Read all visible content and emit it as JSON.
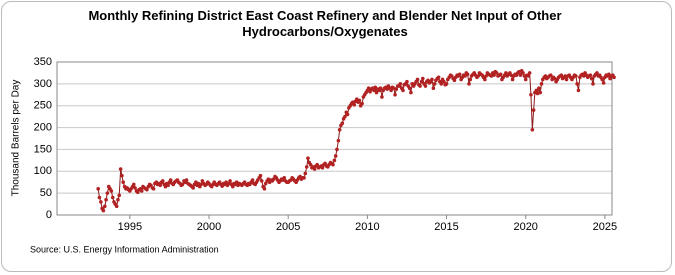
{
  "chart_data": {
    "type": "line",
    "title": "Monthly Refining District East Coast Refinery and Blender Net Input of Other Hydrocarbons/Oxygenates",
    "y_label": "Thousand Barrels per Day",
    "source": "Source: U.S. Energy Information Administration",
    "color": "#b22222",
    "xlim": [
      1990.4,
      2025.45
    ],
    "xticks": [
      1995,
      2000,
      2005,
      2010,
      2015,
      2020,
      2025
    ],
    "ylim": [
      0,
      350
    ],
    "yticks": [
      0,
      50,
      100,
      150,
      200,
      250,
      300,
      350
    ],
    "grid": true,
    "x": [
      1993,
      1993.08,
      1993.17,
      1993.25,
      1993.33,
      1993.42,
      1993.5,
      1993.58,
      1993.67,
      1993.75,
      1993.83,
      1993.92,
      1994,
      1994.08,
      1994.17,
      1994.25,
      1994.33,
      1994.42,
      1994.5,
      1994.58,
      1994.67,
      1994.75,
      1994.83,
      1994.92,
      1995,
      1995.08,
      1995.17,
      1995.25,
      1995.33,
      1995.42,
      1995.5,
      1995.58,
      1995.67,
      1995.75,
      1995.83,
      1995.92,
      1996,
      1996.08,
      1996.17,
      1996.25,
      1996.33,
      1996.42,
      1996.5,
      1996.58,
      1996.67,
      1996.75,
      1996.83,
      1996.92,
      1997,
      1997.08,
      1997.17,
      1997.25,
      1997.33,
      1997.42,
      1997.5,
      1997.58,
      1997.67,
      1997.75,
      1997.83,
      1997.92,
      1998,
      1998.08,
      1998.17,
      1998.25,
      1998.33,
      1998.42,
      1998.5,
      1998.58,
      1998.67,
      1998.75,
      1998.83,
      1998.92,
      1999,
      1999.08,
      1999.17,
      1999.25,
      1999.33,
      1999.42,
      1999.5,
      1999.58,
      1999.67,
      1999.75,
      1999.83,
      1999.92,
      2000,
      2000.08,
      2000.17,
      2000.25,
      2000.33,
      2000.42,
      2000.5,
      2000.58,
      2000.67,
      2000.75,
      2000.83,
      2000.92,
      2001,
      2001.08,
      2001.17,
      2001.25,
      2001.33,
      2001.42,
      2001.5,
      2001.58,
      2001.67,
      2001.75,
      2001.83,
      2001.92,
      2002,
      2002.08,
      2002.17,
      2002.25,
      2002.33,
      2002.42,
      2002.5,
      2002.58,
      2002.67,
      2002.75,
      2002.83,
      2002.92,
      2003,
      2003.08,
      2003.17,
      2003.25,
      2003.33,
      2003.42,
      2003.5,
      2003.58,
      2003.67,
      2003.75,
      2003.83,
      2003.92,
      2004,
      2004.08,
      2004.17,
      2004.25,
      2004.33,
      2004.42,
      2004.5,
      2004.58,
      2004.67,
      2004.75,
      2004.83,
      2004.92,
      2005,
      2005.08,
      2005.17,
      2005.25,
      2005.33,
      2005.42,
      2005.5,
      2005.58,
      2005.67,
      2005.75,
      2005.83,
      2005.92,
      2006,
      2006.08,
      2006.17,
      2006.25,
      2006.33,
      2006.42,
      2006.5,
      2006.58,
      2006.67,
      2006.75,
      2006.83,
      2006.92,
      2007,
      2007.08,
      2007.17,
      2007.25,
      2007.33,
      2007.42,
      2007.5,
      2007.58,
      2007.67,
      2007.75,
      2007.83,
      2007.92,
      2008,
      2008.08,
      2008.17,
      2008.25,
      2008.33,
      2008.42,
      2008.5,
      2008.58,
      2008.67,
      2008.75,
      2008.83,
      2008.92,
      2009,
      2009.08,
      2009.17,
      2009.25,
      2009.33,
      2009.42,
      2009.5,
      2009.58,
      2009.67,
      2009.75,
      2009.83,
      2009.92,
      2010,
      2010.08,
      2010.17,
      2010.25,
      2010.33,
      2010.42,
      2010.5,
      2010.58,
      2010.67,
      2010.75,
      2010.83,
      2010.92,
      2011,
      2011.08,
      2011.17,
      2011.25,
      2011.33,
      2011.42,
      2011.5,
      2011.58,
      2011.67,
      2011.75,
      2011.83,
      2011.92,
      2012,
      2012.08,
      2012.17,
      2012.25,
      2012.33,
      2012.42,
      2012.5,
      2012.58,
      2012.67,
      2012.75,
      2012.83,
      2012.92,
      2013,
      2013.08,
      2013.17,
      2013.25,
      2013.33,
      2013.42,
      2013.5,
      2013.58,
      2013.67,
      2013.75,
      2013.83,
      2013.92,
      2014,
      2014.08,
      2014.17,
      2014.25,
      2014.33,
      2014.42,
      2014.5,
      2014.58,
      2014.67,
      2014.75,
      2014.83,
      2014.92,
      2015,
      2015.08,
      2015.17,
      2015.25,
      2015.33,
      2015.42,
      2015.5,
      2015.58,
      2015.67,
      2015.75,
      2015.83,
      2015.92,
      2016,
      2016.08,
      2016.17,
      2016.25,
      2016.33,
      2016.42,
      2016.5,
      2016.58,
      2016.67,
      2016.75,
      2016.83,
      2016.92,
      2017,
      2017.08,
      2017.17,
      2017.25,
      2017.33,
      2017.42,
      2017.5,
      2017.58,
      2017.67,
      2017.75,
      2017.83,
      2017.92,
      2018,
      2018.08,
      2018.17,
      2018.25,
      2018.33,
      2018.42,
      2018.5,
      2018.58,
      2018.67,
      2018.75,
      2018.83,
      2018.92,
      2019,
      2019.08,
      2019.17,
      2019.25,
      2019.33,
      2019.42,
      2019.5,
      2019.58,
      2019.67,
      2019.75,
      2019.83,
      2019.92,
      2020,
      2020.08,
      2020.17,
      2020.25,
      2020.33,
      2020.42,
      2020.5,
      2020.58,
      2020.67,
      2020.75,
      2020.83,
      2020.92,
      2021,
      2021.08,
      2021.17,
      2021.25,
      2021.33,
      2021.42,
      2021.5,
      2021.58,
      2021.67,
      2021.75,
      2021.83,
      2021.92,
      2022,
      2022.08,
      2022.17,
      2022.25,
      2022.33,
      2022.42,
      2022.5,
      2022.58,
      2022.67,
      2022.75,
      2022.83,
      2022.92,
      2023,
      2023.08,
      2023.17,
      2023.25,
      2023.33,
      2023.42,
      2023.5,
      2023.58,
      2023.67,
      2023.75,
      2023.83,
      2023.92,
      2024,
      2024.08,
      2024.17,
      2024.25,
      2024.33,
      2024.42,
      2024.5,
      2024.58,
      2024.67,
      2024.75,
      2024.83,
      2024.92,
      2025,
      2025.08,
      2025.17,
      2025.25,
      2025.33,
      2025.42,
      2025.5,
      2025.58
    ],
    "values": [
      60,
      40,
      30,
      15,
      10,
      20,
      35,
      50,
      65,
      60,
      55,
      40,
      30,
      25,
      20,
      35,
      45,
      105,
      90,
      75,
      65,
      60,
      62,
      58,
      55,
      60,
      65,
      70,
      62,
      55,
      52,
      58,
      60,
      55,
      65,
      62,
      60,
      58,
      65,
      70,
      68,
      62,
      60,
      72,
      75,
      70,
      72,
      68,
      75,
      78,
      70,
      65,
      72,
      68,
      75,
      80,
      72,
      70,
      75,
      78,
      80,
      75,
      72,
      68,
      70,
      78,
      75,
      80,
      72,
      70,
      68,
      65,
      62,
      70,
      75,
      68,
      72,
      65,
      70,
      78,
      72,
      68,
      70,
      75,
      72,
      68,
      65,
      70,
      75,
      70,
      68,
      72,
      75,
      70,
      66,
      72,
      70,
      75,
      68,
      72,
      78,
      70,
      65,
      72,
      70,
      75,
      68,
      72,
      70,
      68,
      72,
      75,
      70,
      68,
      72,
      70,
      75,
      80,
      72,
      70,
      75,
      80,
      85,
      90,
      78,
      65,
      60,
      72,
      78,
      82,
      75,
      80,
      78,
      82,
      88,
      85,
      80,
      75,
      78,
      82,
      80,
      85,
      78,
      75,
      75,
      78,
      80,
      85,
      82,
      78,
      75,
      80,
      85,
      88,
      82,
      85,
      85,
      95,
      110,
      130,
      120,
      115,
      108,
      110,
      105,
      112,
      115,
      108,
      110,
      112,
      108,
      115,
      118,
      112,
      110,
      115,
      120,
      118,
      115,
      125,
      135,
      150,
      170,
      195,
      205,
      210,
      220,
      225,
      235,
      230,
      245,
      250,
      255,
      258,
      252,
      260,
      265,
      258,
      262,
      250,
      255,
      270,
      275,
      280,
      285,
      290,
      282,
      288,
      290,
      285,
      292,
      280,
      288,
      285,
      290,
      270,
      285,
      290,
      292,
      288,
      295,
      290,
      285,
      292,
      290,
      275,
      288,
      295,
      295,
      300,
      290,
      285,
      298,
      300,
      305,
      295,
      290,
      280,
      300,
      295,
      300,
      305,
      310,
      298,
      295,
      305,
      312,
      300,
      295,
      305,
      308,
      302,
      305,
      310,
      290,
      300,
      308,
      312,
      315,
      305,
      300,
      310,
      305,
      298,
      300,
      310,
      315,
      320,
      318,
      312,
      308,
      315,
      320,
      318,
      322,
      310,
      315,
      320,
      318,
      325,
      322,
      300,
      310,
      318,
      322,
      325,
      320,
      315,
      318,
      325,
      322,
      320,
      315,
      310,
      318,
      325,
      322,
      320,
      318,
      325,
      320,
      328,
      325,
      318,
      320,
      322,
      310,
      315,
      320,
      325,
      318,
      322,
      325,
      320,
      310,
      318,
      322,
      320,
      325,
      328,
      320,
      330,
      325,
      318,
      310,
      320,
      318,
      325,
      275,
      195,
      240,
      280,
      285,
      278,
      290,
      280,
      300,
      310,
      315,
      318,
      312,
      315,
      318,
      320,
      310,
      315,
      312,
      305,
      310,
      315,
      318,
      320,
      312,
      315,
      318,
      310,
      318,
      320,
      315,
      310,
      315,
      320,
      318,
      300,
      285,
      315,
      320,
      322,
      318,
      325,
      320,
      315,
      318,
      320,
      312,
      300,
      318,
      322,
      325,
      318,
      320,
      315,
      310,
      302,
      315,
      320,
      318,
      322,
      312,
      318,
      320,
      315
    ]
  }
}
